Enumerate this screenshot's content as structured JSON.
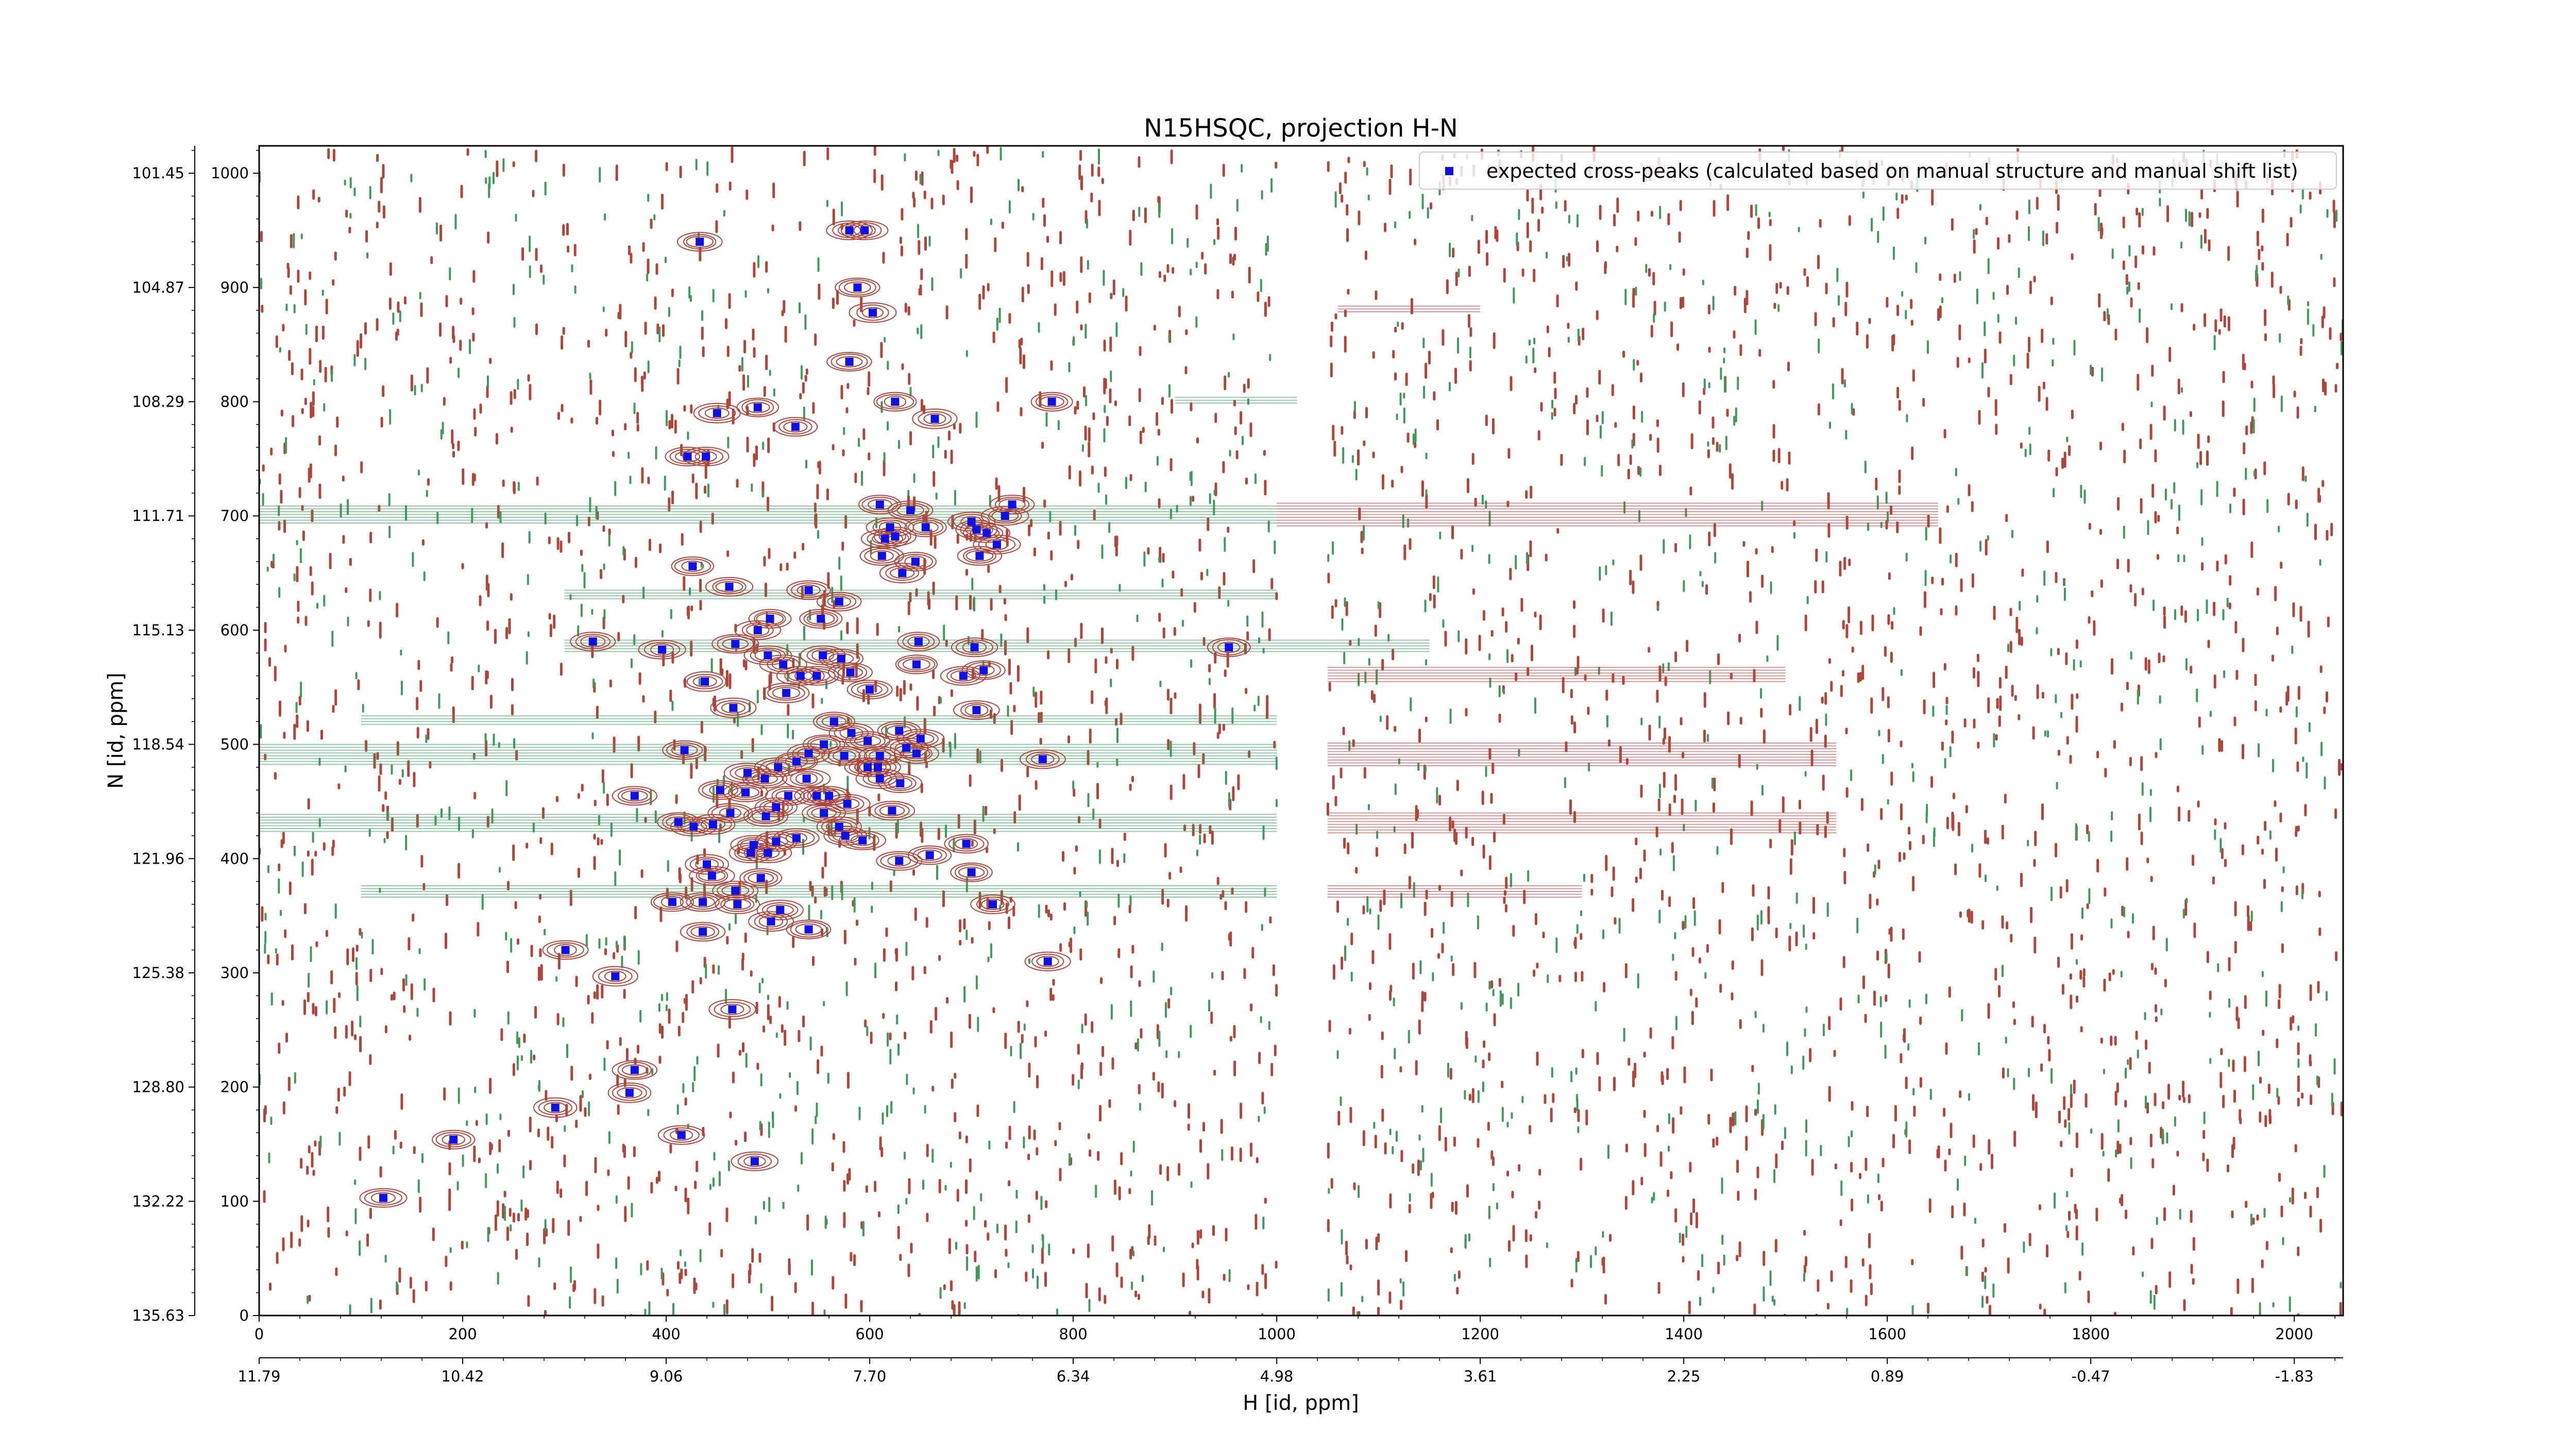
{
  "chart_data": {
    "type": "scatter",
    "title": "N15HSQC, projection H-N",
    "xlabel": "H [id, ppm]",
    "ylabel": "N [id, ppm]",
    "xlim": [
      0,
      2048
    ],
    "ylim": [
      0,
      1024
    ],
    "x_ticks": [
      0,
      200,
      400,
      600,
      800,
      1000,
      1200,
      1400,
      1600,
      1800,
      2000
    ],
    "y_ticks": [
      0,
      100,
      200,
      300,
      400,
      500,
      600,
      700,
      800,
      900,
      1000
    ],
    "x_ppm_ticks": [
      "11.79",
      "10.42",
      "9.06",
      "7.70",
      "6.34",
      "4.98",
      "3.61",
      "2.25",
      "0.89",
      "-0.47",
      "-1.83"
    ],
    "y_ppm_ticks": [
      "135.63",
      "132.22",
      "128.80",
      "125.38",
      "121.96",
      "118.54",
      "115.13",
      "111.71",
      "108.29",
      "104.87",
      "101.45"
    ],
    "legend_position": "top-right",
    "contour_colors": {
      "positive": "#b0453a",
      "negative": "#3f9a5c"
    },
    "series": [
      {
        "name": "expected cross-peaks (calculated based on manual structure and manual shift list)",
        "color": "#1010e6",
        "marker": "square",
        "points": [
          [
            433,
            940
          ],
          [
            580,
            950
          ],
          [
            595,
            950
          ],
          [
            588,
            900
          ],
          [
            603,
            878
          ],
          [
            580,
            835
          ],
          [
            450,
            790
          ],
          [
            490,
            795
          ],
          [
            527,
            778
          ],
          [
            625,
            800
          ],
          [
            664,
            785
          ],
          [
            779,
            800
          ],
          [
            421,
            752
          ],
          [
            439,
            752
          ],
          [
            610,
            710
          ],
          [
            640,
            705
          ],
          [
            620,
            690
          ],
          [
            615,
            680
          ],
          [
            625,
            682
          ],
          [
            655,
            690
          ],
          [
            700,
            695
          ],
          [
            705,
            688
          ],
          [
            715,
            685
          ],
          [
            725,
            675
          ],
          [
            733,
            700
          ],
          [
            740,
            710
          ],
          [
            612,
            665
          ],
          [
            632,
            650
          ],
          [
            645,
            660
          ],
          [
            708,
            665
          ],
          [
            426,
            656
          ],
          [
            462,
            638
          ],
          [
            490,
            600
          ],
          [
            502,
            610
          ],
          [
            540,
            635
          ],
          [
            552,
            610
          ],
          [
            570,
            625
          ],
          [
            328,
            590
          ],
          [
            396,
            583
          ],
          [
            468,
            588
          ],
          [
            500,
            578
          ],
          [
            515,
            570
          ],
          [
            532,
            560
          ],
          [
            548,
            560
          ],
          [
            554,
            578
          ],
          [
            572,
            575
          ],
          [
            581,
            563
          ],
          [
            600,
            548
          ],
          [
            646,
            570
          ],
          [
            648,
            590
          ],
          [
            703,
            585
          ],
          [
            692,
            560
          ],
          [
            712,
            565
          ],
          [
            705,
            530
          ],
          [
            438,
            555
          ],
          [
            466,
            532
          ],
          [
            518,
            545
          ],
          [
            565,
            520
          ],
          [
            582,
            510
          ],
          [
            629,
            512
          ],
          [
            598,
            503
          ],
          [
            610,
            490
          ],
          [
            636,
            497
          ],
          [
            646,
            492
          ],
          [
            650,
            505
          ],
          [
            610,
            470
          ],
          [
            598,
            480
          ],
          [
            575,
            490
          ],
          [
            555,
            500
          ],
          [
            540,
            492
          ],
          [
            528,
            485
          ],
          [
            538,
            470
          ],
          [
            510,
            480
          ],
          [
            497,
            470
          ],
          [
            480,
            475
          ],
          [
            520,
            455
          ],
          [
            508,
            445
          ],
          [
            498,
            437
          ],
          [
            478,
            458
          ],
          [
            453,
            460
          ],
          [
            463,
            440
          ],
          [
            446,
            430
          ],
          [
            427,
            428
          ],
          [
            369,
            455
          ],
          [
            412,
            432
          ],
          [
            418,
            495
          ],
          [
            548,
            455
          ],
          [
            555,
            440
          ],
          [
            570,
            428
          ],
          [
            576,
            420
          ],
          [
            593,
            416
          ],
          [
            622,
            442
          ],
          [
            608,
            480
          ],
          [
            630,
            466
          ],
          [
            560,
            455
          ],
          [
            578,
            448
          ],
          [
            508,
            415
          ],
          [
            528,
            418
          ],
          [
            486,
            412
          ],
          [
            483,
            405
          ],
          [
            500,
            405
          ],
          [
            440,
            395
          ],
          [
            445,
            385
          ],
          [
            493,
            383
          ],
          [
            468,
            372
          ],
          [
            512,
            355
          ],
          [
            540,
            338
          ],
          [
            503,
            345
          ],
          [
            406,
            362
          ],
          [
            436,
            362
          ],
          [
            436,
            336
          ],
          [
            470,
            360
          ],
          [
            695,
            413
          ],
          [
            700,
            388
          ],
          [
            721,
            360
          ],
          [
            775,
            310
          ],
          [
            629,
            398
          ],
          [
            659,
            403
          ],
          [
            770,
            487
          ],
          [
            953,
            585
          ],
          [
            301,
            320
          ],
          [
            350,
            297
          ],
          [
            465,
            268
          ],
          [
            369,
            215
          ],
          [
            364,
            195
          ],
          [
            291,
            182
          ],
          [
            191,
            154
          ],
          [
            415,
            158
          ],
          [
            487,
            135
          ],
          [
            122,
            103
          ]
        ]
      }
    ]
  }
}
